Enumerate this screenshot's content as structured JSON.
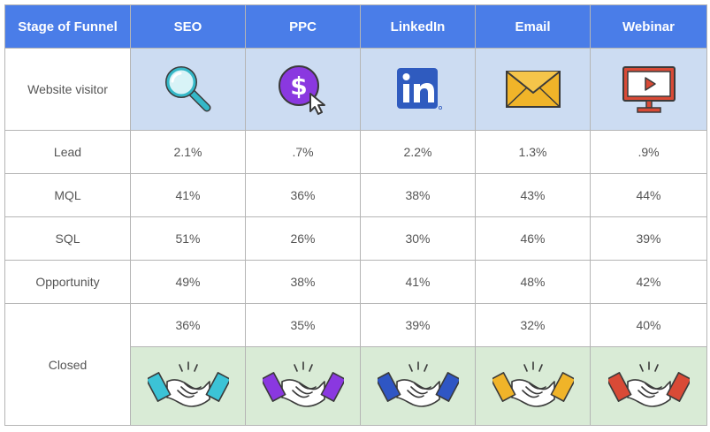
{
  "header": {
    "stage": "Stage of Funnel",
    "channels": [
      "SEO",
      "PPC",
      "LinkedIn",
      "Email",
      "Webinar"
    ]
  },
  "rows": [
    {
      "label": "Website visitor"
    },
    {
      "label": "Lead",
      "values": [
        "2.1%",
        ".7%",
        "2.2%",
        "1.3%",
        ".9%"
      ]
    },
    {
      "label": "MQL",
      "values": [
        "41%",
        "36%",
        "38%",
        "43%",
        "44%"
      ]
    },
    {
      "label": "SQL",
      "values": [
        "51%",
        "26%",
        "30%",
        "46%",
        "39%"
      ]
    },
    {
      "label": "Opportunity",
      "values": [
        "49%",
        "38%",
        "41%",
        "48%",
        "42%"
      ]
    },
    {
      "label": "Closed",
      "values": [
        "36%",
        "35%",
        "39%",
        "32%",
        "40%"
      ]
    }
  ],
  "icons": {
    "visitor": [
      "magnifier-icon",
      "ppc-dollar-cursor-icon",
      "linkedin-icon",
      "envelope-icon",
      "monitor-play-icon"
    ],
    "closed": [
      "handshake-icon",
      "handshake-icon",
      "handshake-icon",
      "handshake-icon",
      "handshake-icon"
    ]
  },
  "colors": {
    "header": "#4a7de8",
    "visitor_row": "#ccdcf2",
    "closed_row": "#d9ebd6",
    "handshake_cuffs": [
      "#3cc3d6",
      "#8a38e0",
      "#2f56c4",
      "#f0b429",
      "#d94a36"
    ]
  }
}
